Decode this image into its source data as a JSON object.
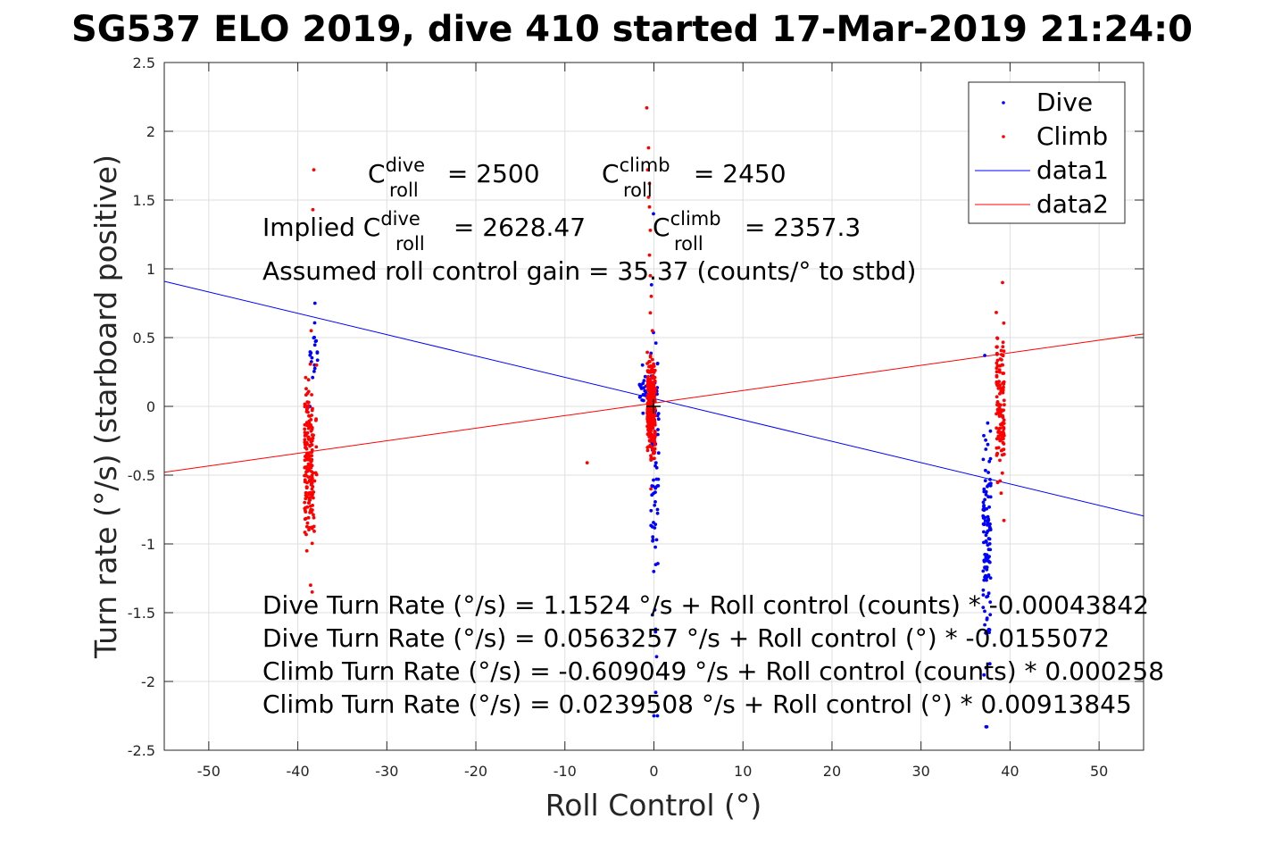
{
  "chart_data": {
    "type": "scatter",
    "title": "SG537 ELO 2019, dive 410 started 17-Mar-2019 21:24:0",
    "xlabel": "Roll Control (°)",
    "ylabel": "Turn rate (°/s) (starboard positive)",
    "xlim": [
      -55,
      55
    ],
    "ylim": [
      -2.5,
      2.5
    ],
    "xticks": [
      -50,
      -40,
      -30,
      -20,
      -10,
      0,
      10,
      20,
      30,
      40,
      50
    ],
    "xtick_labels": [
      "-50",
      "-40",
      "-30",
      "-20",
      "-10",
      "0",
      "10",
      "20",
      "30",
      "40",
      "50"
    ],
    "yticks": [
      -2.5,
      -2,
      -1.5,
      -1,
      -0.5,
      0,
      0.5,
      1,
      1.5,
      2,
      2.5
    ],
    "ytick_labels": [
      "-2.5",
      "-2",
      "-1.5",
      "-1",
      "-0.5",
      "0",
      "0.5",
      "1",
      "1.5",
      "2",
      "2.5"
    ],
    "grid": true,
    "legend_position": "top-right",
    "series": [
      {
        "name": "Dive",
        "kind": "points",
        "color": "#0000ff",
        "clusters": [
          {
            "x": -38.2,
            "ymin": 0.0,
            "ymax": 0.75,
            "n": 20
          },
          {
            "x": -1.2,
            "ymin": -0.05,
            "ymax": 0.3,
            "n": 20
          },
          {
            "x": 0.1,
            "ymin": -2.25,
            "ymax": 1.4,
            "n": 70
          },
          {
            "x": 37.4,
            "ymin": -2.33,
            "ymax": 0.37,
            "n": 110
          }
        ],
        "points": [
          [
            0.2,
            -1.15
          ],
          [
            0.3,
            -0.97
          ],
          [
            0.4,
            -0.75
          ],
          [
            0.1,
            -1.48
          ],
          [
            0.2,
            -1.62
          ],
          [
            0.3,
            -1.82
          ],
          [
            0.2,
            -2.08
          ],
          [
            0.4,
            -2.25
          ],
          [
            37.3,
            -2.33
          ],
          [
            37.4,
            -1.55
          ],
          [
            37.3,
            -1.9
          ],
          [
            37.4,
            -1.08
          ],
          [
            37.3,
            -0.98
          ],
          [
            37.5,
            -1.38
          ]
        ]
      },
      {
        "name": "Climb",
        "kind": "points",
        "color": "#ff0000",
        "clusters": [
          {
            "x": -38.8,
            "ymin": -1.3,
            "ymax": 0.55,
            "n": 150
          },
          {
            "x": -38.3,
            "ymin": -1.35,
            "ymax": 0.3,
            "n": 40
          },
          {
            "x": -0.3,
            "ymin": -0.6,
            "ymax": 0.55,
            "n": 320
          },
          {
            "x": 38.9,
            "ymin": -0.83,
            "ymax": 0.9,
            "n": 130
          }
        ],
        "points": [
          [
            -38.2,
            1.72
          ],
          [
            -38.3,
            1.43
          ],
          [
            -7.5,
            -0.41
          ],
          [
            -0.8,
            2.17
          ],
          [
            -0.6,
            1.88
          ],
          [
            -0.7,
            1.72
          ],
          [
            -0.5,
            1.62
          ],
          [
            -0.6,
            1.52
          ],
          [
            -0.5,
            1.45
          ],
          [
            -0.4,
            1.28
          ],
          [
            -0.5,
            1.1
          ],
          [
            -0.4,
            0.95
          ],
          [
            -0.3,
            0.8
          ],
          [
            -0.4,
            0.68
          ]
        ]
      },
      {
        "name": "data1",
        "kind": "line",
        "color": "#0000ff",
        "x": [
          -55,
          55
        ],
        "y": [
          0.9092,
          -0.7969
        ]
      },
      {
        "name": "data2",
        "kind": "line",
        "color": "#ff0000",
        "x": [
          -55,
          55
        ],
        "y": [
          -0.4787,
          0.5266
        ]
      }
    ],
    "annotations": {
      "c_dive": {
        "prefix": "C",
        "sup": "dive",
        "sub": "roll",
        "rest": " = 2500"
      },
      "c_climb": {
        "prefix": "C",
        "sup": "climb",
        "sub": "roll",
        "rest": " = 2450"
      },
      "implied_dive": {
        "prefix": "Implied C",
        "sup": "dive",
        "sub": "roll",
        "rest": " = 2628.47"
      },
      "implied_climb": {
        "prefix": "C",
        "sup": "climb",
        "sub": "roll",
        "rest": " = 2357.3"
      },
      "gain": "Assumed roll control gain = 35.37 (counts/° to stbd)",
      "eq1": "Dive Turn Rate (°/s) = 1.1524 °/s + Roll control (counts) * -0.00043842",
      "eq2": "Dive Turn Rate (°/s) = 0.0563257 °/s + Roll control (°) * -0.0155072",
      "eq3": "Climb Turn Rate (°/s) = -0.609049 °/s + Roll control (counts) * 0.000258",
      "eq4": "Climb Turn Rate (°/s) = 0.0239508 °/s + Roll control (°) * 0.00913845"
    }
  }
}
